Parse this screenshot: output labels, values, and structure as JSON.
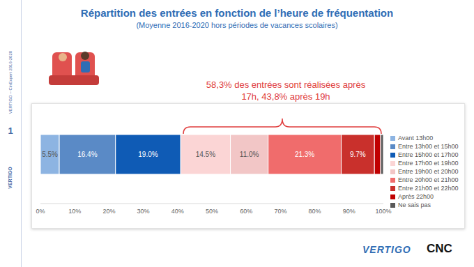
{
  "chart_data": {
    "type": "bar",
    "orientation": "horizontal",
    "stacked": true,
    "title": "Répartition des entrées en fonction de l’heure de fréquentation",
    "subtitle": "(Moyenne 2016-2020 hors périodes de vacances scolaires)",
    "annotation": [
      "58,3% des entrées sont réalisées après",
      "17h, 43,8% après 19h"
    ],
    "categories": [
      null
    ],
    "series": [
      {
        "name": "Avant 13h00",
        "color": "#8db4e2",
        "values": [
          5.5
        ],
        "value_labels": [
          "5.5%"
        ]
      },
      {
        "name": "Entre 13h00 et 15h00",
        "color": "#5a8ac6",
        "values": [
          16.4
        ],
        "value_labels": [
          "16.4%"
        ]
      },
      {
        "name": "Entre 15h00 et 17h00",
        "color": "#0f5bb5",
        "values": [
          19.0
        ],
        "value_labels": [
          "19.0%"
        ]
      },
      {
        "name": "Entre 17h00 et 19h00",
        "color": "#fbd5d5",
        "values": [
          14.5
        ],
        "value_labels": [
          "14.5%"
        ]
      },
      {
        "name": "Entre 19h00 et 20h00",
        "color": "#f2c6c6",
        "values": [
          11.0
        ],
        "value_labels": [
          "11.0%"
        ]
      },
      {
        "name": "Entre 20h00 et 21h00",
        "color": "#f06c6c",
        "values": [
          21.3
        ],
        "value_labels": [
          "21.3%"
        ]
      },
      {
        "name": "Entre 21h00 et 22h00",
        "color": "#c9302c",
        "values": [
          9.7
        ],
        "value_labels": [
          "9.7%"
        ]
      },
      {
        "name": "Après 22h00",
        "color": "#c00000",
        "values": [
          1.8
        ],
        "value_labels": [
          null
        ]
      },
      {
        "name": "Ne sais pas",
        "color": "#595959",
        "values": [
          0.8
        ],
        "value_labels": [
          null
        ]
      }
    ],
    "xlim": [
      0,
      100
    ],
    "xticks": [
      {
        "value": 0,
        "label": "0%"
      },
      {
        "value": 10,
        "label": "10%"
      },
      {
        "value": 20,
        "label": "20%"
      },
      {
        "value": 30,
        "label": "30%"
      },
      {
        "value": 40,
        "label": "40%"
      },
      {
        "value": 50,
        "label": "50%"
      },
      {
        "value": 60,
        "label": "60%"
      },
      {
        "value": 70,
        "label": "70%"
      },
      {
        "value": 80,
        "label": "80%"
      },
      {
        "value": 90,
        "label": "90%"
      },
      {
        "value": 100,
        "label": "100%"
      }
    ],
    "data_labels": true,
    "legend": "right",
    "grid": false
  },
  "side_texts": {
    "source": "VERTIGO – CinExpert 2016-2020",
    "page": "1",
    "brand": "VERTIGO"
  },
  "logos": [
    "VERTIGO",
    "CNC"
  ]
}
